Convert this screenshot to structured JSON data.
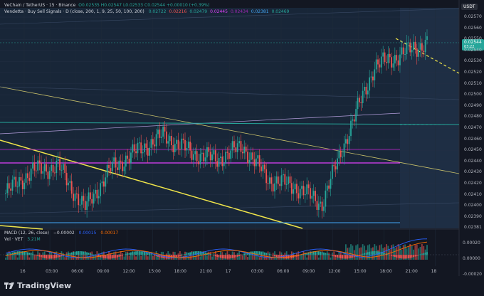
{
  "legend": {
    "main": "VeChain / TetherUS · 15 · Binance",
    "ohlc": "O0.02535 H0.02547 L0.02533 C0.02544 +0.00010 (+0.39%)",
    "indicator": "Vendetta · Buy Sell Signals · D (close, 200, 1, 9, 25, 50, 100, 200)",
    "indicator_values": [
      "0.02722",
      "0.02216",
      "0.02479",
      "0.02445",
      "0.02434",
      "0.02381",
      "0.02469"
    ],
    "indicator_colors": [
      "#26a69a",
      "#ef5350",
      "#26a69a",
      "#e040fb",
      "#9c27b0",
      "#42a5f5",
      "#26a69a"
    ],
    "macd": "MACD (12, 26, close)",
    "macd_values": [
      "−0.00002",
      "0.00015",
      "0.00017"
    ],
    "vol": "Vol · VET",
    "vol_value": "3.21M"
  },
  "price_axis": {
    "currency": "USDT",
    "ticks": [
      "0.02570",
      "0.02560",
      "0.02550",
      "0.02540",
      "0.02530",
      "0.02520",
      "0.02510",
      "0.02500",
      "0.02490",
      "0.02480",
      "0.02470",
      "0.02460",
      "0.02450",
      "0.02440",
      "0.02430",
      "0.02420",
      "0.02410",
      "0.02400",
      "0.02390",
      "0.02381"
    ],
    "last_price": "0.02544",
    "countdown": "03:22"
  },
  "macd_axis": {
    "ticks": [
      "0.00020",
      "0.00000",
      "-0.00020"
    ]
  },
  "time_axis": [
    "16",
    "03:00",
    "06:00",
    "09:00",
    "12:00",
    "15:00",
    "18:00",
    "21:00",
    "17",
    "03:00",
    "06:00",
    "09:00",
    "12:00",
    "15:00",
    "18:00",
    "21:00",
    "18"
  ],
  "colors": {
    "up": "#26a69a",
    "down": "#ef5350",
    "bg": "#131722",
    "highlight": "#1e2a3a",
    "yellow": "#f0e54a"
  },
  "branding": {
    "name": "TradingView"
  },
  "chart_data": {
    "type": "candlestick",
    "title": "VeChain / TetherUS · 15 · Binance",
    "ylim": [
      0.02378,
      0.02575
    ],
    "close_path_approx": [
      [
        "16 00:00",
        0.02408
      ],
      [
        "16 03:00",
        0.02428
      ],
      [
        "16 06:00",
        0.02432
      ],
      [
        "16 09:00",
        0.02394
      ],
      [
        "16 12:00",
        0.0243
      ],
      [
        "16 15:00",
        0.02446
      ],
      [
        "16 18:00",
        0.0246
      ],
      [
        "16 21:00",
        0.02445
      ],
      [
        "17 00:00",
        0.02438
      ],
      [
        "17 03:00",
        0.0245
      ],
      [
        "17 06:00",
        0.0242
      ],
      [
        "17 09:00",
        0.02414
      ],
      [
        "17 12:00",
        0.02398
      ],
      [
        "17 15:00",
        0.02462
      ],
      [
        "17 18:00",
        0.02522
      ],
      [
        "17 21:00",
        0.02533
      ],
      [
        "18 00:00",
        0.02544
      ]
    ]
  }
}
